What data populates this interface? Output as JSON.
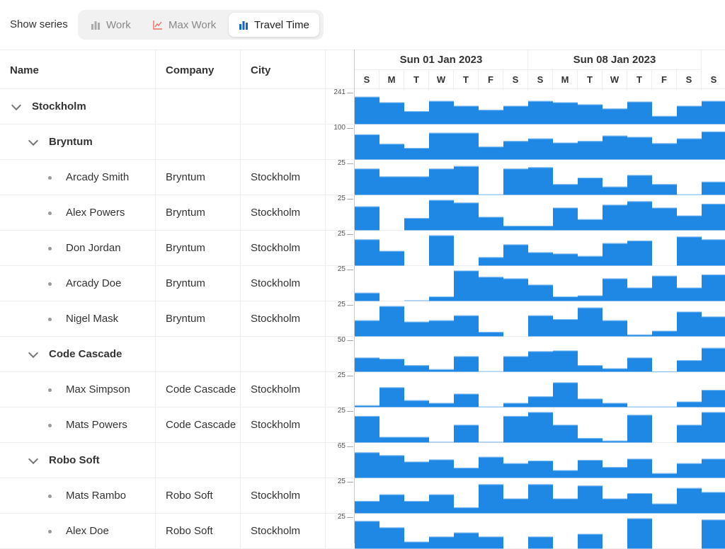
{
  "toolbar": {
    "label": "Show series",
    "buttons": [
      {
        "label": "Work",
        "icon": "bar-chart-icon",
        "color": "#aaaaaa",
        "active": false
      },
      {
        "label": "Max Work",
        "icon": "line-chart-icon",
        "color": "#f07060",
        "active": false
      },
      {
        "label": "Travel Time",
        "icon": "bar-chart-icon",
        "color": "#1565c0",
        "active": true
      }
    ]
  },
  "columns": {
    "name": "Name",
    "company": "Company",
    "city": "City"
  },
  "timeline": {
    "weeks": [
      "Sun 01 Jan 2023",
      "Sun 08 Jan 2023"
    ],
    "days": [
      "S",
      "M",
      "T",
      "W",
      "T",
      "F",
      "S",
      "S",
      "M",
      "T",
      "W",
      "T",
      "F",
      "S",
      "S"
    ]
  },
  "bar_color": "#1f88e5",
  "rows": [
    {
      "level": 0,
      "name": "Stockholm",
      "company": "",
      "city": "",
      "max": "241",
      "values": [
        210,
        168,
        100,
        178,
        141,
        110,
        141,
        178,
        168,
        152,
        120,
        173,
        63,
        141,
        178
      ]
    },
    {
      "level": 1,
      "name": "Bryntum",
      "company": "",
      "city": "",
      "max": "100",
      "values": [
        80,
        50,
        37,
        85,
        85,
        41,
        59,
        67,
        54,
        59,
        76,
        72,
        52,
        67,
        89
      ]
    },
    {
      "level": 2,
      "name": "Arcady Smith",
      "company": "Bryntum",
      "city": "Stockholm",
      "max": "25",
      "values": [
        20.9,
        14.7,
        14.7,
        20.9,
        22.9,
        0.4,
        20.9,
        22,
        8.6,
        13.7,
        6.6,
        15.8,
        8.6,
        0.4,
        10.5
      ]
    },
    {
      "level": 2,
      "name": "Alex Powers",
      "company": "Bryntum",
      "city": "Stockholm",
      "max": "25",
      "values": [
        19,
        0,
        9.8,
        24.1,
        22,
        10.7,
        3.6,
        3.6,
        18,
        8.8,
        20.3,
        23.1,
        18,
        11.8,
        21.1
      ]
    },
    {
      "level": 2,
      "name": "Don Jordan",
      "company": "Bryntum",
      "city": "Stockholm",
      "max": "25",
      "values": [
        20.9,
        11.8,
        0,
        24.1,
        0,
        6.8,
        16.9,
        10.7,
        9.6,
        7.7,
        17.9,
        19.9,
        0,
        23.1,
        20.9
      ]
    },
    {
      "level": 2,
      "name": "Arcady Doe",
      "company": "Bryntum",
      "city": "Stockholm",
      "max": "25",
      "values": [
        6.6,
        0,
        0.6,
        3.6,
        24.2,
        19.2,
        18,
        13,
        3.6,
        4.5,
        18,
        10.7,
        20.1,
        10.7,
        21.1
      ]
    },
    {
      "level": 2,
      "name": "Nigel Mask",
      "company": "Bryntum",
      "city": "Stockholm",
      "max": "25",
      "values": [
        12.8,
        24.1,
        11.7,
        12.8,
        16.7,
        3.6,
        0,
        16.7,
        13.7,
        22.9,
        12.8,
        1.5,
        4.5,
        19.7,
        15.8
      ]
    },
    {
      "level": 1,
      "name": "Code Cascade",
      "company": "",
      "city": "",
      "max": "50",
      "values": [
        22.6,
        20.7,
        10.5,
        4.1,
        24.8,
        1.1,
        24.8,
        32.7,
        33.8,
        10.5,
        5.6,
        22.6,
        0.4,
        18.4,
        38
      ]
    },
    {
      "level": 2,
      "name": "Max Simpson",
      "company": "Code Cascade",
      "city": "Stockholm",
      "max": "25",
      "values": [
        1.5,
        15.8,
        5.5,
        3.4,
        10.7,
        0.4,
        3.4,
        8.6,
        19.7,
        6.8,
        3.4,
        0.4,
        0.4,
        4.5,
        13.7
      ]
    },
    {
      "level": 2,
      "name": "Mats Powers",
      "company": "Code Cascade",
      "city": "Stockholm",
      "max": "25",
      "values": [
        21.1,
        4.5,
        4.5,
        0.6,
        14.1,
        0.6,
        21.1,
        24.2,
        14.1,
        3.6,
        1.5,
        22,
        0,
        14.1,
        24.2
      ]
    },
    {
      "level": 1,
      "name": "Robo Soft",
      "company": "",
      "city": "",
      "max": "65",
      "values": [
        52.8,
        46.9,
        33.7,
        38.1,
        21,
        43.5,
        30.3,
        35.7,
        16.1,
        37.1,
        22.5,
        39.6,
        9.8,
        30.3,
        39.6
      ]
    },
    {
      "level": 2,
      "name": "Mats Rambo",
      "company": "Robo Soft",
      "city": "Stockholm",
      "max": "25",
      "values": [
        9.8,
        15,
        9.8,
        15,
        4.7,
        23.1,
        11.8,
        23.1,
        11.8,
        22,
        11.8,
        16,
        7.7,
        20.1,
        16.9
      ]
    },
    {
      "level": 2,
      "name": "Alex Doe",
      "company": "Robo Soft",
      "city": "Stockholm",
      "max": "25",
      "values": [
        22,
        16.9,
        5.6,
        9.6,
        12.8,
        9.6,
        0,
        9.6,
        0,
        11.8,
        0,
        24.1,
        0,
        0,
        23.1
      ]
    }
  ]
}
